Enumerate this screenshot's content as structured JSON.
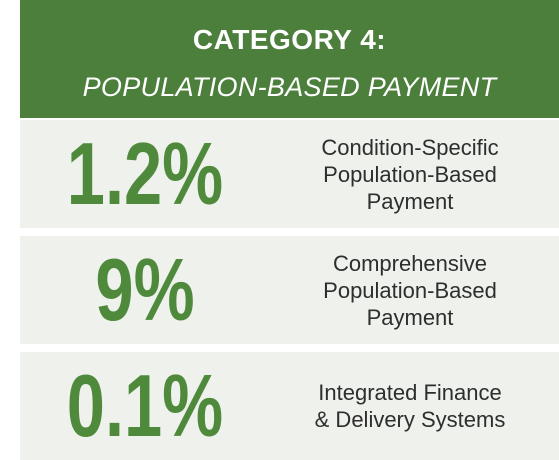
{
  "header": {
    "title": "CATEGORY 4:",
    "subtitle": "POPULATION-BASED PAYMENT"
  },
  "rows": [
    {
      "figure": "1.2%",
      "description": [
        "Condition-Specific",
        "Population-Based",
        "Payment"
      ]
    },
    {
      "figure": "9%",
      "description": [
        "Comprehensive",
        "Population-Based",
        "Payment"
      ]
    },
    {
      "figure": "0.1%",
      "description": [
        "Integrated Finance",
        "& Delivery Systems"
      ]
    }
  ]
}
